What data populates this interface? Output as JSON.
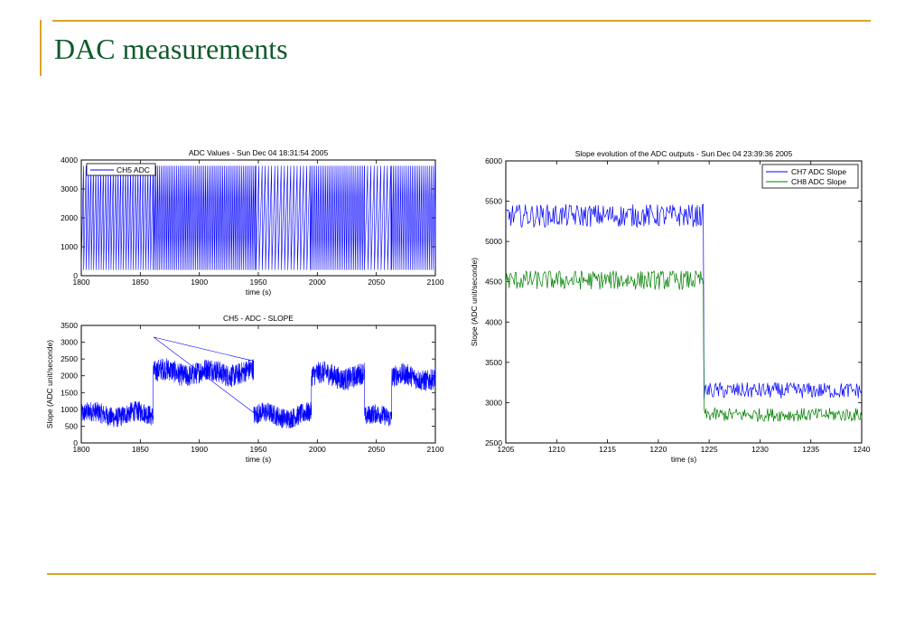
{
  "slide": {
    "title": "DAC measurements",
    "accent_color": "#d9a527",
    "title_color": "#0f5a2c"
  },
  "chart_data": [
    {
      "id": "adc-values",
      "type": "line",
      "title": "ADC Values - Sun Dec 04 18:31:54 2005",
      "xlabel": "time (s)",
      "ylabel": "",
      "xlim": [
        1800,
        2100
      ],
      "ylim": [
        0,
        4000
      ],
      "xticks": [
        1800,
        1850,
        1900,
        1950,
        2000,
        2050,
        2100
      ],
      "yticks": [
        0,
        1000,
        2000,
        3000,
        4000
      ],
      "legend": "top-left",
      "grid": false,
      "series": [
        {
          "name": "CH5 ADC",
          "color": "#0000ff",
          "pattern": "sawtooth",
          "min": 200,
          "max": 3800,
          "segments": [
            {
              "from": 1800,
              "to": 1862,
              "period": 2.1
            },
            {
              "from": 1862,
              "to": 1948,
              "period": 1.45
            },
            {
              "from": 1948,
              "to": 1995,
              "period": 2.7
            },
            {
              "from": 1995,
              "to": 2040,
              "period": 1.55
            },
            {
              "from": 2040,
              "to": 2063,
              "period": 2.8
            },
            {
              "from": 2063,
              "to": 2100,
              "period": 1.6
            }
          ]
        }
      ]
    },
    {
      "id": "ch5-slope",
      "type": "line",
      "title": "CH5 - ADC - SLOPE",
      "xlabel": "time (s)",
      "ylabel": "Slope (ADC unit/seconde)",
      "xlim": [
        1800,
        2100
      ],
      "ylim": [
        0,
        3500
      ],
      "xticks": [
        1800,
        1850,
        1900,
        1950,
        2000,
        2050,
        2100
      ],
      "yticks": [
        0,
        500,
        1000,
        1500,
        2000,
        2500,
        3000,
        3500
      ],
      "grid": false,
      "series": [
        {
          "name": "",
          "color": "#0000ff",
          "segments": [
            {
              "from": 1800,
              "to": 1861,
              "level": 850,
              "noise": 380
            },
            {
              "from": 1861,
              "to": 1946,
              "level": 2100,
              "noise": 420
            },
            {
              "from": 1946,
              "to": 1995,
              "level": 820,
              "noise": 380
            },
            {
              "from": 1995,
              "to": 2040,
              "level": 2000,
              "noise": 420
            },
            {
              "from": 2040,
              "to": 2063,
              "level": 780,
              "noise": 360
            },
            {
              "from": 2063,
              "to": 2100,
              "level": 1950,
              "noise": 400
            }
          ]
        }
      ]
    },
    {
      "id": "slope-evolution",
      "type": "line",
      "title": "Slope evolution of the ADC outputs - Sun Dec 04 23:39:36 2005",
      "xlabel": "time (s)",
      "ylabel": "Slope (ADC unit/seconde)",
      "xlim": [
        1205,
        1240
      ],
      "ylim": [
        2500,
        6000
      ],
      "xticks": [
        1205,
        1210,
        1215,
        1220,
        1225,
        1230,
        1235,
        1240
      ],
      "yticks": [
        2500,
        3000,
        3500,
        4000,
        4500,
        5000,
        5500,
        6000
      ],
      "legend": "top-right",
      "grid": false,
      "step_at": 1224.5,
      "series": [
        {
          "name": "CH7 ADC Slope",
          "color": "#0000ff",
          "before": 5320,
          "after": 3150,
          "noise": 130
        },
        {
          "name": "CH8 ADC Slope",
          "color": "#008000",
          "before": 4520,
          "after": 2850,
          "noise": 110
        }
      ]
    }
  ]
}
